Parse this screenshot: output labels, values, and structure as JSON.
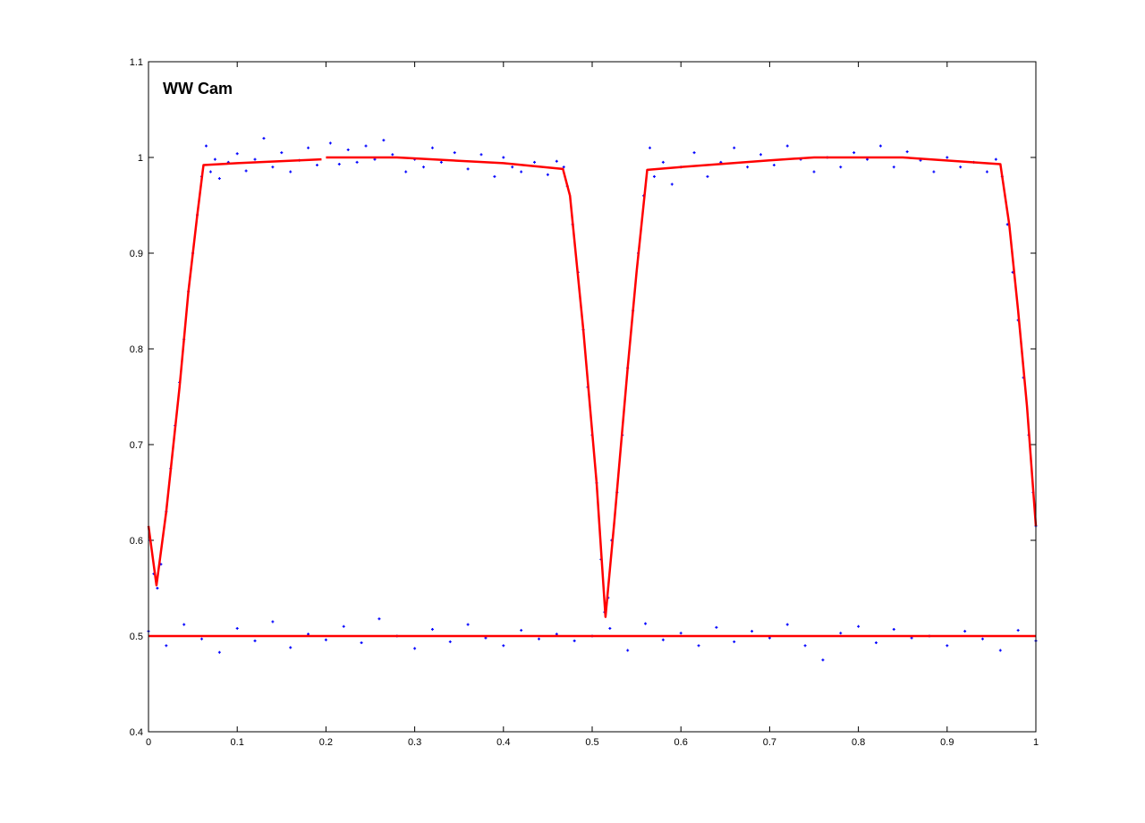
{
  "chart_data": {
    "type": "scatter",
    "annotation": "WW Cam",
    "xlim": [
      0,
      1
    ],
    "ylim": [
      0.4,
      1.1
    ],
    "xticks": [
      0,
      0.1,
      0.2,
      0.3,
      0.4,
      0.5,
      0.6,
      0.7,
      0.8,
      0.9,
      1
    ],
    "yticks": [
      0.4,
      0.5,
      0.6,
      0.7,
      0.8,
      0.9,
      1,
      1.1
    ],
    "grid": false,
    "series": [
      {
        "mode": "markers",
        "color": "#0000ff",
        "x": [
          0.002,
          0.006,
          0.01,
          0.014,
          0.02,
          0.025,
          0.03,
          0.035,
          0.04,
          0.045,
          0.05,
          0.055,
          0.06,
          0.065,
          0.07,
          0.075,
          0.08,
          0.09,
          0.1,
          0.11,
          0.12,
          0.13,
          0.14,
          0.15,
          0.16,
          0.17,
          0.18,
          0.19,
          0.205,
          0.215,
          0.225,
          0.235,
          0.245,
          0.255,
          0.265,
          0.275,
          0.29,
          0.3,
          0.31,
          0.32,
          0.33,
          0.345,
          0.36,
          0.375,
          0.39,
          0.4,
          0.41,
          0.42,
          0.435,
          0.45,
          0.46,
          0.468,
          0.472,
          0.478,
          0.484,
          0.49,
          0.495,
          0.5,
          0.505,
          0.51,
          0.514,
          0.518,
          0.522,
          0.528,
          0.534,
          0.54,
          0.546,
          0.552,
          0.558,
          0.565,
          0.57,
          0.58,
          0.59,
          0.6,
          0.615,
          0.63,
          0.645,
          0.66,
          0.675,
          0.69,
          0.705,
          0.72,
          0.735,
          0.75,
          0.765,
          0.78,
          0.795,
          0.81,
          0.825,
          0.84,
          0.855,
          0.87,
          0.885,
          0.9,
          0.915,
          0.93,
          0.945,
          0.955,
          0.962,
          0.968,
          0.974,
          0.98,
          0.986,
          0.992,
          0.997,
          1.0
        ],
        "y": [
          0.6,
          0.565,
          0.55,
          0.575,
          0.63,
          0.675,
          0.72,
          0.765,
          0.81,
          0.86,
          0.9,
          0.94,
          0.98,
          1.012,
          0.985,
          0.998,
          0.978,
          0.995,
          1.004,
          0.986,
          0.998,
          1.02,
          0.99,
          1.005,
          0.985,
          0.997,
          1.01,
          0.992,
          1.015,
          0.993,
          1.008,
          0.995,
          1.012,
          0.998,
          1.018,
          1.003,
          0.985,
          0.998,
          0.99,
          1.01,
          0.995,
          1.005,
          0.988,
          1.003,
          0.98,
          1.0,
          0.99,
          0.985,
          0.995,
          0.982,
          0.996,
          0.99,
          0.97,
          0.93,
          0.88,
          0.82,
          0.76,
          0.71,
          0.66,
          0.58,
          0.525,
          0.54,
          0.6,
          0.65,
          0.71,
          0.78,
          0.84,
          0.9,
          0.96,
          1.01,
          0.98,
          0.995,
          0.972,
          0.99,
          1.005,
          0.98,
          0.995,
          1.01,
          0.99,
          1.003,
          0.992,
          1.012,
          0.998,
          0.985,
          1.0,
          0.99,
          1.005,
          0.998,
          1.012,
          0.99,
          1.006,
          0.997,
          0.985,
          1.0,
          0.99,
          0.995,
          0.985,
          0.998,
          0.98,
          0.93,
          0.88,
          0.83,
          0.77,
          0.71,
          0.65,
          0.615
        ]
      },
      {
        "mode": "markers",
        "color": "#0000ff",
        "x": [
          0,
          0.02,
          0.04,
          0.06,
          0.08,
          0.1,
          0.12,
          0.14,
          0.16,
          0.18,
          0.2,
          0.22,
          0.24,
          0.26,
          0.28,
          0.3,
          0.32,
          0.34,
          0.36,
          0.38,
          0.4,
          0.42,
          0.44,
          0.46,
          0.48,
          0.5,
          0.52,
          0.54,
          0.56,
          0.58,
          0.6,
          0.62,
          0.64,
          0.66,
          0.68,
          0.7,
          0.72,
          0.74,
          0.76,
          0.78,
          0.8,
          0.82,
          0.84,
          0.86,
          0.88,
          0.9,
          0.92,
          0.94,
          0.96,
          0.98,
          1
        ],
        "y": [
          0.505,
          0.49,
          0.512,
          0.497,
          0.483,
          0.508,
          0.495,
          0.515,
          0.488,
          0.502,
          0.496,
          0.51,
          0.493,
          0.518,
          0.5,
          0.487,
          0.507,
          0.494,
          0.512,
          0.498,
          0.49,
          0.506,
          0.497,
          0.502,
          0.495,
          0.5,
          0.508,
          0.485,
          0.513,
          0.496,
          0.503,
          0.49,
          0.509,
          0.494,
          0.505,
          0.498,
          0.512,
          0.49,
          0.475,
          0.503,
          0.51,
          0.493,
          0.507,
          0.498,
          0.5,
          0.49,
          0.505,
          0.497,
          0.485,
          0.506,
          0.495
        ]
      },
      {
        "mode": "line",
        "color": "#ff0000",
        "x": [
          0,
          0.009,
          0.02,
          0.035,
          0.045,
          0.055,
          0.061,
          0.062,
          0.1,
          0.195,
          null,
          0.2,
          0.28,
          0.4,
          0.467,
          0.475,
          0.49,
          0.505,
          0.515,
          0.525,
          0.54,
          0.55,
          0.562,
          0.6,
          0.7,
          0.75,
          0.85,
          0.96,
          0.97,
          0.98,
          0.99,
          1
        ],
        "y": [
          0.615,
          0.553,
          0.63,
          0.76,
          0.86,
          0.94,
          0.985,
          0.992,
          0.994,
          0.998,
          null,
          1.0,
          1.0,
          0.994,
          0.988,
          0.96,
          0.82,
          0.66,
          0.52,
          0.62,
          0.78,
          0.88,
          0.987,
          0.99,
          0.997,
          1.0,
          1.0,
          0.993,
          0.93,
          0.84,
          0.74,
          0.615
        ]
      },
      {
        "mode": "line",
        "color": "#ff0000",
        "x": [
          0,
          1
        ],
        "y": [
          0.5,
          0.5
        ]
      }
    ]
  }
}
